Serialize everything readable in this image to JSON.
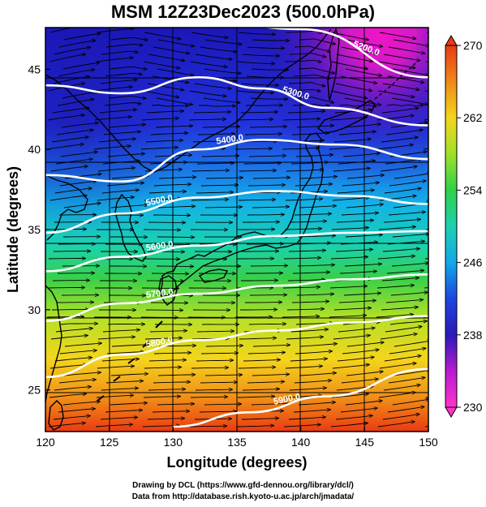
{
  "title": "MSM 12Z23Dec2023 (500.0hPa)",
  "xlabel": "Longitude (degrees)",
  "ylabel": "Latitude  (degrees)",
  "credits": {
    "line1": "Drawing by DCL (https://www.gfd-dennou.org/library/dcl/)",
    "line2": "Data from http://database.rish.kyoto-u.ac.jp/arch/jmadata/"
  },
  "map": {
    "lon_range": [
      120,
      150
    ],
    "lat_range": [
      22.4,
      47.6
    ],
    "x_ticks": [
      120,
      125,
      130,
      135,
      140,
      145,
      150
    ],
    "y_ticks": [
      25,
      30,
      35,
      40,
      45
    ],
    "colorbar": {
      "min": 230,
      "max": 270,
      "ticks": [
        230,
        238,
        246,
        254,
        262,
        270
      ]
    },
    "contours": [
      {
        "label": "5200.0",
        "lat_at_lon": [
          [
            120,
            49.0
          ],
          [
            130,
            48.5
          ],
          [
            140,
            47.5
          ],
          [
            150,
            44.5
          ]
        ]
      },
      {
        "label": "5300.0",
        "lat_at_lon": [
          [
            120,
            44.0
          ],
          [
            126,
            43.5
          ],
          [
            132,
            44.5
          ],
          [
            137,
            43.8
          ],
          [
            142,
            42.6
          ],
          [
            150,
            41.5
          ]
        ]
      },
      {
        "label": "5400.0",
        "lat_at_lon": [
          [
            120,
            38.4
          ],
          [
            126,
            38.0
          ],
          [
            132,
            40.0
          ],
          [
            137,
            40.6
          ],
          [
            143,
            40.3
          ],
          [
            150,
            39.4
          ]
        ]
      },
      {
        "label": "5500.0",
        "lat_at_lon": [
          [
            120,
            34.8
          ],
          [
            126,
            36.0
          ],
          [
            132,
            37.0
          ],
          [
            138,
            37.4
          ],
          [
            144,
            37.1
          ],
          [
            150,
            36.6
          ]
        ]
      },
      {
        "label": "5600.0",
        "lat_at_lon": [
          [
            120,
            32.4
          ],
          [
            126,
            33.3
          ],
          [
            132,
            34.0
          ],
          [
            138,
            34.6
          ],
          [
            144,
            34.8
          ],
          [
            150,
            34.9
          ]
        ]
      },
      {
        "label": "5700.0",
        "lat_at_lon": [
          [
            120,
            29.3
          ],
          [
            126,
            30.4
          ],
          [
            132,
            31.0
          ],
          [
            138,
            31.5
          ],
          [
            144,
            31.9
          ],
          [
            150,
            32.2
          ]
        ]
      },
      {
        "label": "5800.0",
        "lat_at_lon": [
          [
            120,
            25.8
          ],
          [
            126,
            27.2
          ],
          [
            132,
            28.1
          ],
          [
            138,
            28.7
          ],
          [
            144,
            29.2
          ],
          [
            150,
            29.6
          ]
        ]
      },
      {
        "label": "5900.0",
        "lat_at_lon": [
          [
            130,
            22.7
          ],
          [
            136,
            23.6
          ],
          [
            142,
            24.6
          ],
          [
            150,
            26.3
          ]
        ]
      }
    ]
  }
}
